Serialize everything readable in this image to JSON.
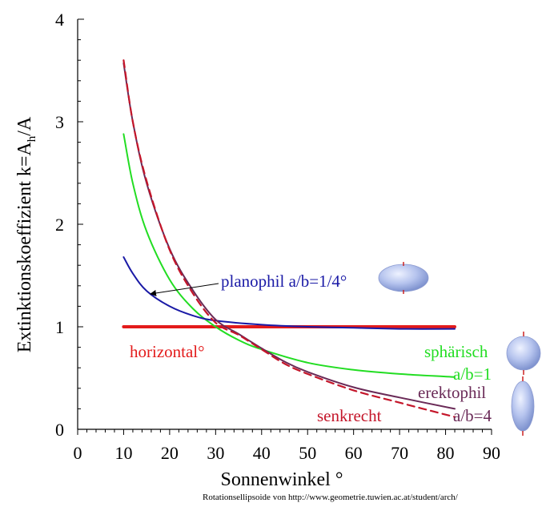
{
  "chart_data": {
    "type": "line",
    "xlabel": "Sonnenwinkel °",
    "ylabel_main": "Extinktionskoeffizient k=A",
    "ylabel_sub": "h",
    "ylabel_tail": "/A",
    "xlim": [
      0,
      90
    ],
    "ylim": [
      0,
      4
    ],
    "x_ticks": [
      0,
      10,
      20,
      30,
      40,
      50,
      60,
      70,
      80,
      90
    ],
    "y_ticks": [
      0,
      1,
      2,
      3,
      4
    ],
    "grid": false,
    "series": [
      {
        "name": "horizontal°",
        "color": "#e31b1b",
        "style": "solid-thick",
        "x": [
          10,
          82
        ],
        "y": [
          1.0,
          1.0
        ]
      },
      {
        "name": "planophil a/b=1/4°",
        "color": "#1a1aa6",
        "style": "solid",
        "x": [
          10,
          12,
          15,
          20,
          25,
          30,
          40,
          50,
          60,
          70,
          82
        ],
        "y": [
          1.68,
          1.52,
          1.35,
          1.2,
          1.11,
          1.06,
          1.02,
          1.0,
          0.99,
          0.98,
          0.98
        ]
      },
      {
        "name": "sphärisch a/b=1",
        "color": "#22dd22",
        "style": "solid",
        "x": [
          10,
          12,
          15,
          20,
          25,
          30,
          35,
          40,
          50,
          60,
          70,
          82
        ],
        "y": [
          2.88,
          2.4,
          1.93,
          1.46,
          1.18,
          1.0,
          0.87,
          0.78,
          0.65,
          0.58,
          0.54,
          0.51
        ]
      },
      {
        "name": "erektophil a/b=4",
        "color": "#6a2a57",
        "style": "solid",
        "x": [
          10,
          12,
          15,
          20,
          25,
          30,
          35,
          40,
          45,
          50,
          60,
          70,
          82
        ],
        "y": [
          3.57,
          3.0,
          2.4,
          1.76,
          1.36,
          1.07,
          0.93,
          0.79,
          0.66,
          0.56,
          0.41,
          0.31,
          0.2
        ]
      },
      {
        "name": "senkrecht",
        "color": "#c4162a",
        "style": "dashed",
        "x": [
          10,
          12,
          15,
          20,
          25,
          30,
          35,
          40,
          45,
          50,
          60,
          70,
          82
        ],
        "y": [
          3.6,
          3.0,
          2.42,
          1.75,
          1.33,
          1.04,
          0.92,
          0.78,
          0.64,
          0.54,
          0.38,
          0.26,
          0.12
        ]
      }
    ],
    "annotations": {
      "horizontal": "horizontal°",
      "planophil": "planophil a/b=1/4°",
      "spharisch": "sphärisch",
      "spharisch_ratio": "a/b=1",
      "erektophil": "erektophil",
      "erektophil_ratio": "a/b=4",
      "senkrecht": "senkrecht"
    },
    "credit": "Rotationsellipsoide von http://www.geometrie.tuwien.ac.at/student/arch/"
  },
  "colors": {
    "horizontal": "#e31b1b",
    "planophil": "#1a1aa6",
    "spharisch": "#22dd22",
    "erektophil": "#6a2a57",
    "senkrecht": "#c4162a"
  },
  "icons": [
    "oblate-ellipsoid-icon",
    "sphere-icon",
    "prolate-ellipsoid-icon"
  ]
}
